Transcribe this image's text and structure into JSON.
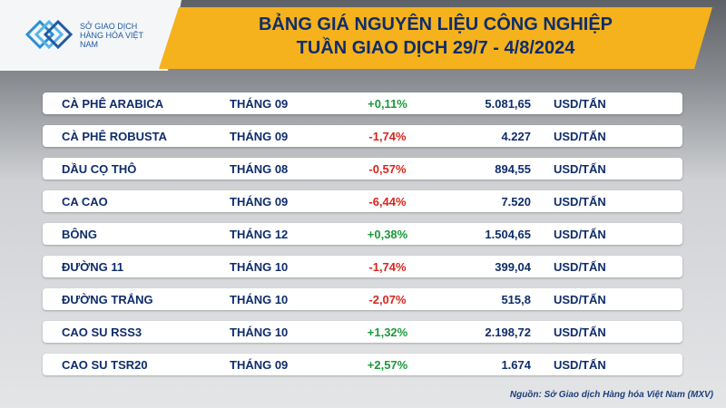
{
  "header": {
    "logo_text": "SỞ GIAO DỊCH HÀNG HÓA VIỆT NAM",
    "title_line1": "BẢNG GIÁ NGUYÊN LIỆU CÔNG NGHIỆP",
    "title_line2": "TUẦN GIAO DỊCH 29/7 - 4/8/2024"
  },
  "table": {
    "rows": [
      [
        "CÀ PHÊ ARABICA",
        "THÁNG 09",
        "+0,11%",
        "5.081,65",
        "USD/TẤN"
      ],
      [
        "CÀ PHÊ ROBUSTA",
        "THÁNG 09",
        "-1,74%",
        "4.227",
        "USD/TẤN"
      ],
      [
        "DẦU CỌ THÔ",
        "THÁNG 08",
        "-0,57%",
        "894,55",
        "USD/TẤN"
      ],
      [
        "CA CAO",
        "THÁNG 09",
        "-6,44%",
        "7.520",
        "USD/TẤN"
      ],
      [
        "BÔNG",
        "THÁNG 12",
        "+0,38%",
        "1.504,65",
        "USD/TẤN"
      ],
      [
        "ĐƯỜNG 11",
        "THÁNG 10",
        "-1,74%",
        "399,04",
        "USD/TẤN"
      ],
      [
        "ĐƯỜNG TRẮNG",
        "THÁNG 10",
        "-2,07%",
        "515,8",
        "USD/TẤN"
      ],
      [
        "CAO SU RSS3",
        "THÁNG 10",
        "+1,32%",
        "2.198,72",
        "USD/TẤN"
      ],
      [
        "CAO SU TSR20",
        "THÁNG 09",
        "+2,57%",
        "1.674",
        "USD/TẤN"
      ]
    ]
  },
  "footer": {
    "source": "Nguồn: Sở Giao dịch Hàng hóa Việt Nam (MXV)"
  }
}
